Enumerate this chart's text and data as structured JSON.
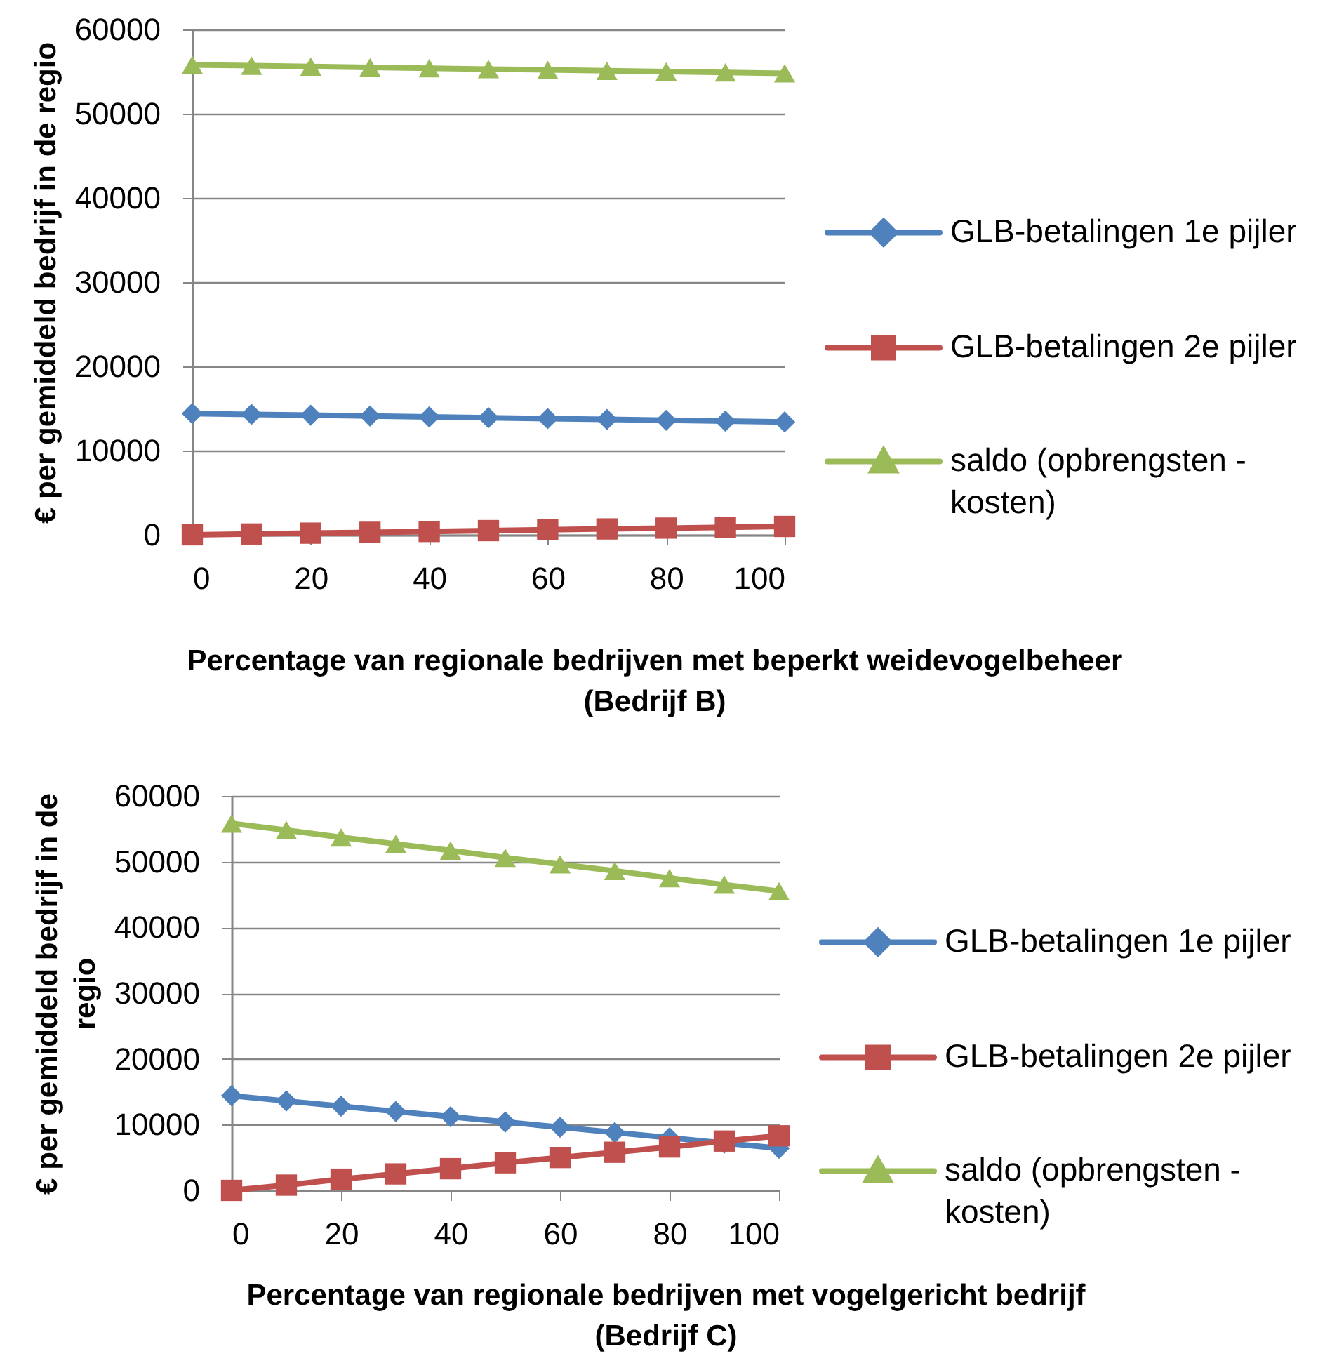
{
  "chart_data": [
    {
      "type": "line",
      "xlabel": "Percentage van regionale bedrijven met beperkt weidevogelbeheer (Bedrijf B)",
      "ylabel": "€ per gemiddeld bedrijf in de regio",
      "x": [
        0,
        10,
        20,
        30,
        40,
        50,
        60,
        70,
        80,
        90,
        100
      ],
      "xlim": [
        0,
        100
      ],
      "xticks": [
        0,
        20,
        40,
        60,
        80,
        100
      ],
      "ylim": [
        0,
        60000
      ],
      "yticks": [
        0,
        10000,
        20000,
        30000,
        40000,
        50000,
        60000
      ],
      "grid": "y",
      "legend": "right",
      "series": [
        {
          "name": "GLB-betalingen 1e pijler",
          "color": "#4f81bd",
          "marker": "diamond",
          "values": [
            14400,
            14300,
            14200,
            14100,
            14000,
            13900,
            13800,
            13700,
            13600,
            13500,
            13400
          ]
        },
        {
          "name": "GLB-betalingen 2e pijler",
          "color": "#c0504d",
          "marker": "square",
          "values": [
            0,
            100,
            200,
            300,
            400,
            500,
            600,
            700,
            800,
            900,
            1000
          ]
        },
        {
          "name": "saldo (opbrengsten - kosten)",
          "color": "#9bbb59",
          "marker": "triangle",
          "values": [
            55800,
            55700,
            55600,
            55500,
            55400,
            55300,
            55200,
            55100,
            55000,
            54900,
            54800
          ]
        }
      ]
    },
    {
      "type": "line",
      "xlabel": "Percentage van regionale bedrijven met vogelgericht bedrijf (Bedrijf C)",
      "ylabel": "€ per gemiddeld bedrijf in de regio",
      "x": [
        0,
        10,
        20,
        30,
        40,
        50,
        60,
        70,
        80,
        90,
        100
      ],
      "xlim": [
        0,
        100
      ],
      "xticks": [
        0,
        20,
        40,
        60,
        80,
        100
      ],
      "ylim": [
        0,
        60000
      ],
      "yticks": [
        0,
        10000,
        20000,
        30000,
        40000,
        50000,
        60000
      ],
      "grid": "y",
      "legend": "right",
      "series": [
        {
          "name": "GLB-betalingen 1e pijler",
          "color": "#4f81bd",
          "marker": "diamond",
          "values": [
            14400,
            13600,
            12800,
            12000,
            11200,
            10400,
            9600,
            8800,
            8000,
            7200,
            6400
          ]
        },
        {
          "name": "GLB-betalingen 2e pijler",
          "color": "#c0504d",
          "marker": "square",
          "values": [
            0,
            800,
            1700,
            2500,
            3300,
            4200,
            5000,
            5800,
            6600,
            7500,
            8300
          ]
        },
        {
          "name": "saldo (opbrengsten - kosten)",
          "color": "#9bbb59",
          "marker": "triangle",
          "values": [
            55800,
            54800,
            53700,
            52700,
            51700,
            50600,
            49600,
            48600,
            47500,
            46500,
            45500
          ]
        }
      ]
    }
  ]
}
